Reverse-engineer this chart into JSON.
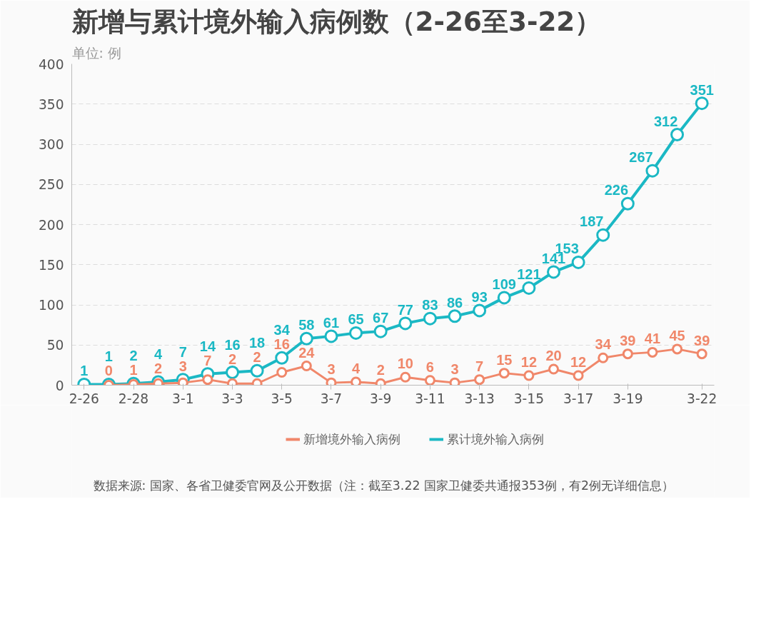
{
  "chart_data": {
    "type": "line",
    "title": "新增与累计境外输入病例数（2-26至3-22）",
    "subtitle": "单位: 例",
    "categories": [
      "2-26",
      null,
      "2-28",
      null,
      "3-1",
      null,
      "3-3",
      null,
      "3-5",
      null,
      "3-7",
      null,
      "3-9",
      null,
      "3-11",
      null,
      "3-13",
      null,
      "3-15",
      null,
      "3-17",
      null,
      "3-19",
      null,
      null,
      "3-22"
    ],
    "series": [
      {
        "name": "新增境外输入病例",
        "color": "#f0876a",
        "values": [
          null,
          0,
          1,
          2,
          3,
          7,
          2,
          2,
          16,
          24,
          3,
          4,
          2,
          10,
          6,
          3,
          7,
          15,
          12,
          20,
          12,
          34,
          39,
          41,
          45,
          39
        ],
        "value_labels": [
          null,
          "0",
          "1",
          "2",
          "3",
          "7",
          "2",
          "2",
          "16",
          "24",
          "3",
          "4",
          "2",
          "10",
          "6",
          "3",
          "7",
          "15",
          "12",
          "20",
          "12",
          "34",
          "39",
          "41",
          "45",
          "39"
        ]
      },
      {
        "name": "累计境外输入病例",
        "color": "#1bb8c4",
        "values": [
          1,
          1,
          2,
          4,
          7,
          14,
          16,
          18,
          34,
          58,
          61,
          65,
          67,
          77,
          83,
          86,
          93,
          109,
          121,
          141,
          153,
          187,
          226,
          267,
          312,
          351
        ],
        "value_labels": [
          "1",
          "1",
          "2",
          "4",
          "7",
          "14",
          "16",
          "18",
          "34",
          "58",
          "61",
          "65",
          "67",
          "77",
          "83",
          "86",
          "93",
          "109",
          "121",
          "141",
          "153",
          "187",
          "226",
          "267",
          "312",
          "351"
        ]
      }
    ],
    "ylim": [
      0,
      400
    ],
    "yticks": [
      0,
      50,
      100,
      150,
      200,
      250,
      300,
      350,
      400
    ],
    "grid": "y",
    "legend": "bottom",
    "marker": "circle",
    "line_style": "solid",
    "annotations": [
      "数据来源: 国家、各省卫健委官网及公开数据（注：截至3.22 国家卫健委共通报353例，有2例无详细信息）"
    ]
  }
}
